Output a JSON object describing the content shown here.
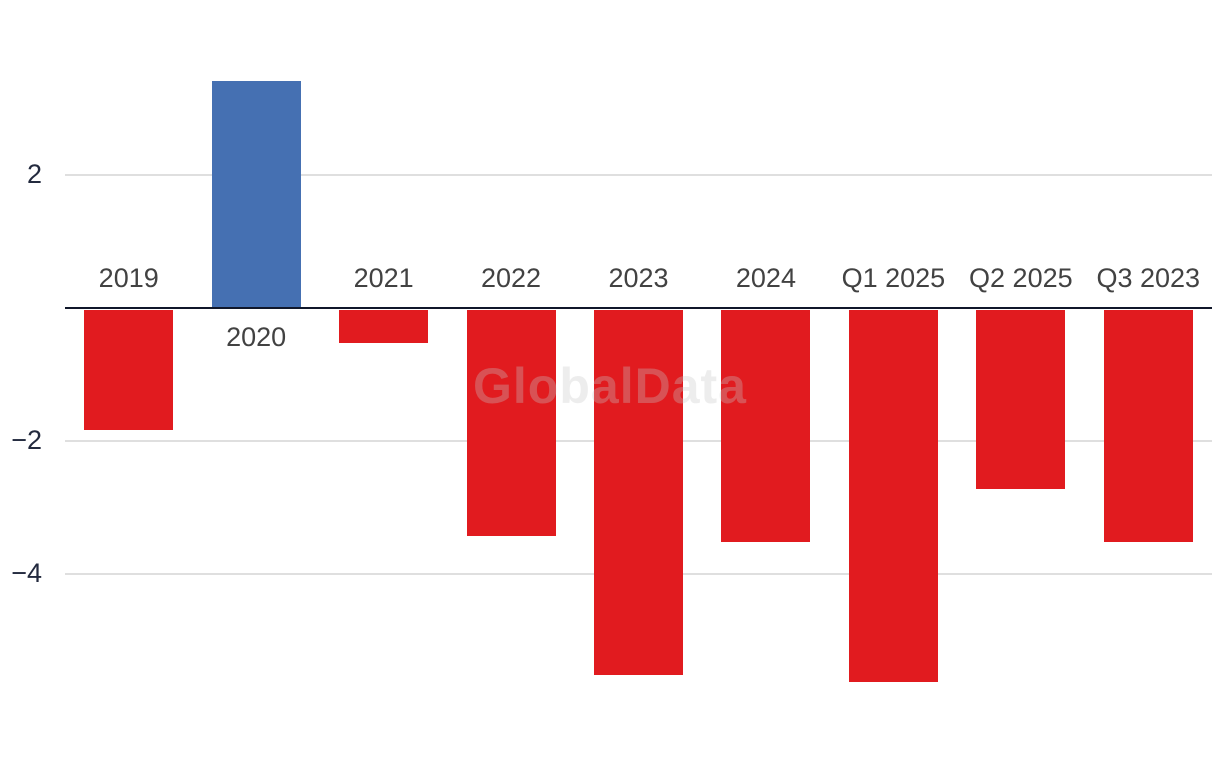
{
  "chart_data": {
    "type": "bar",
    "categories": [
      "2019",
      "2020",
      "2021",
      "2022",
      "2023",
      "2024",
      "Q1 2025",
      "Q2 2025",
      "Q3 2023"
    ],
    "values": [
      -1.8,
      3.4,
      -0.5,
      -3.4,
      -5.5,
      -3.5,
      -5.6,
      -2.7,
      -3.5
    ],
    "title": "",
    "xlabel": "",
    "ylabel": "",
    "yticks": [
      {
        "value": 2,
        "label": "2"
      },
      {
        "value": -2,
        "label": "−2"
      },
      {
        "value": -4,
        "label": "−4"
      }
    ],
    "ylim": [
      -5.75,
      3.5
    ],
    "grid": true,
    "legend": "none",
    "watermark": "GlobalData",
    "bar_colors": {
      "positive": "#4570b2",
      "negative": "#e11b1f"
    }
  },
  "colors": {
    "background": "#ffffff",
    "axis_line": "#10172a",
    "gridline": "#dfdfdf",
    "tick_label": "#232a3e",
    "category_label": "#424242",
    "watermark": "rgba(200,200,200,0.32)"
  }
}
